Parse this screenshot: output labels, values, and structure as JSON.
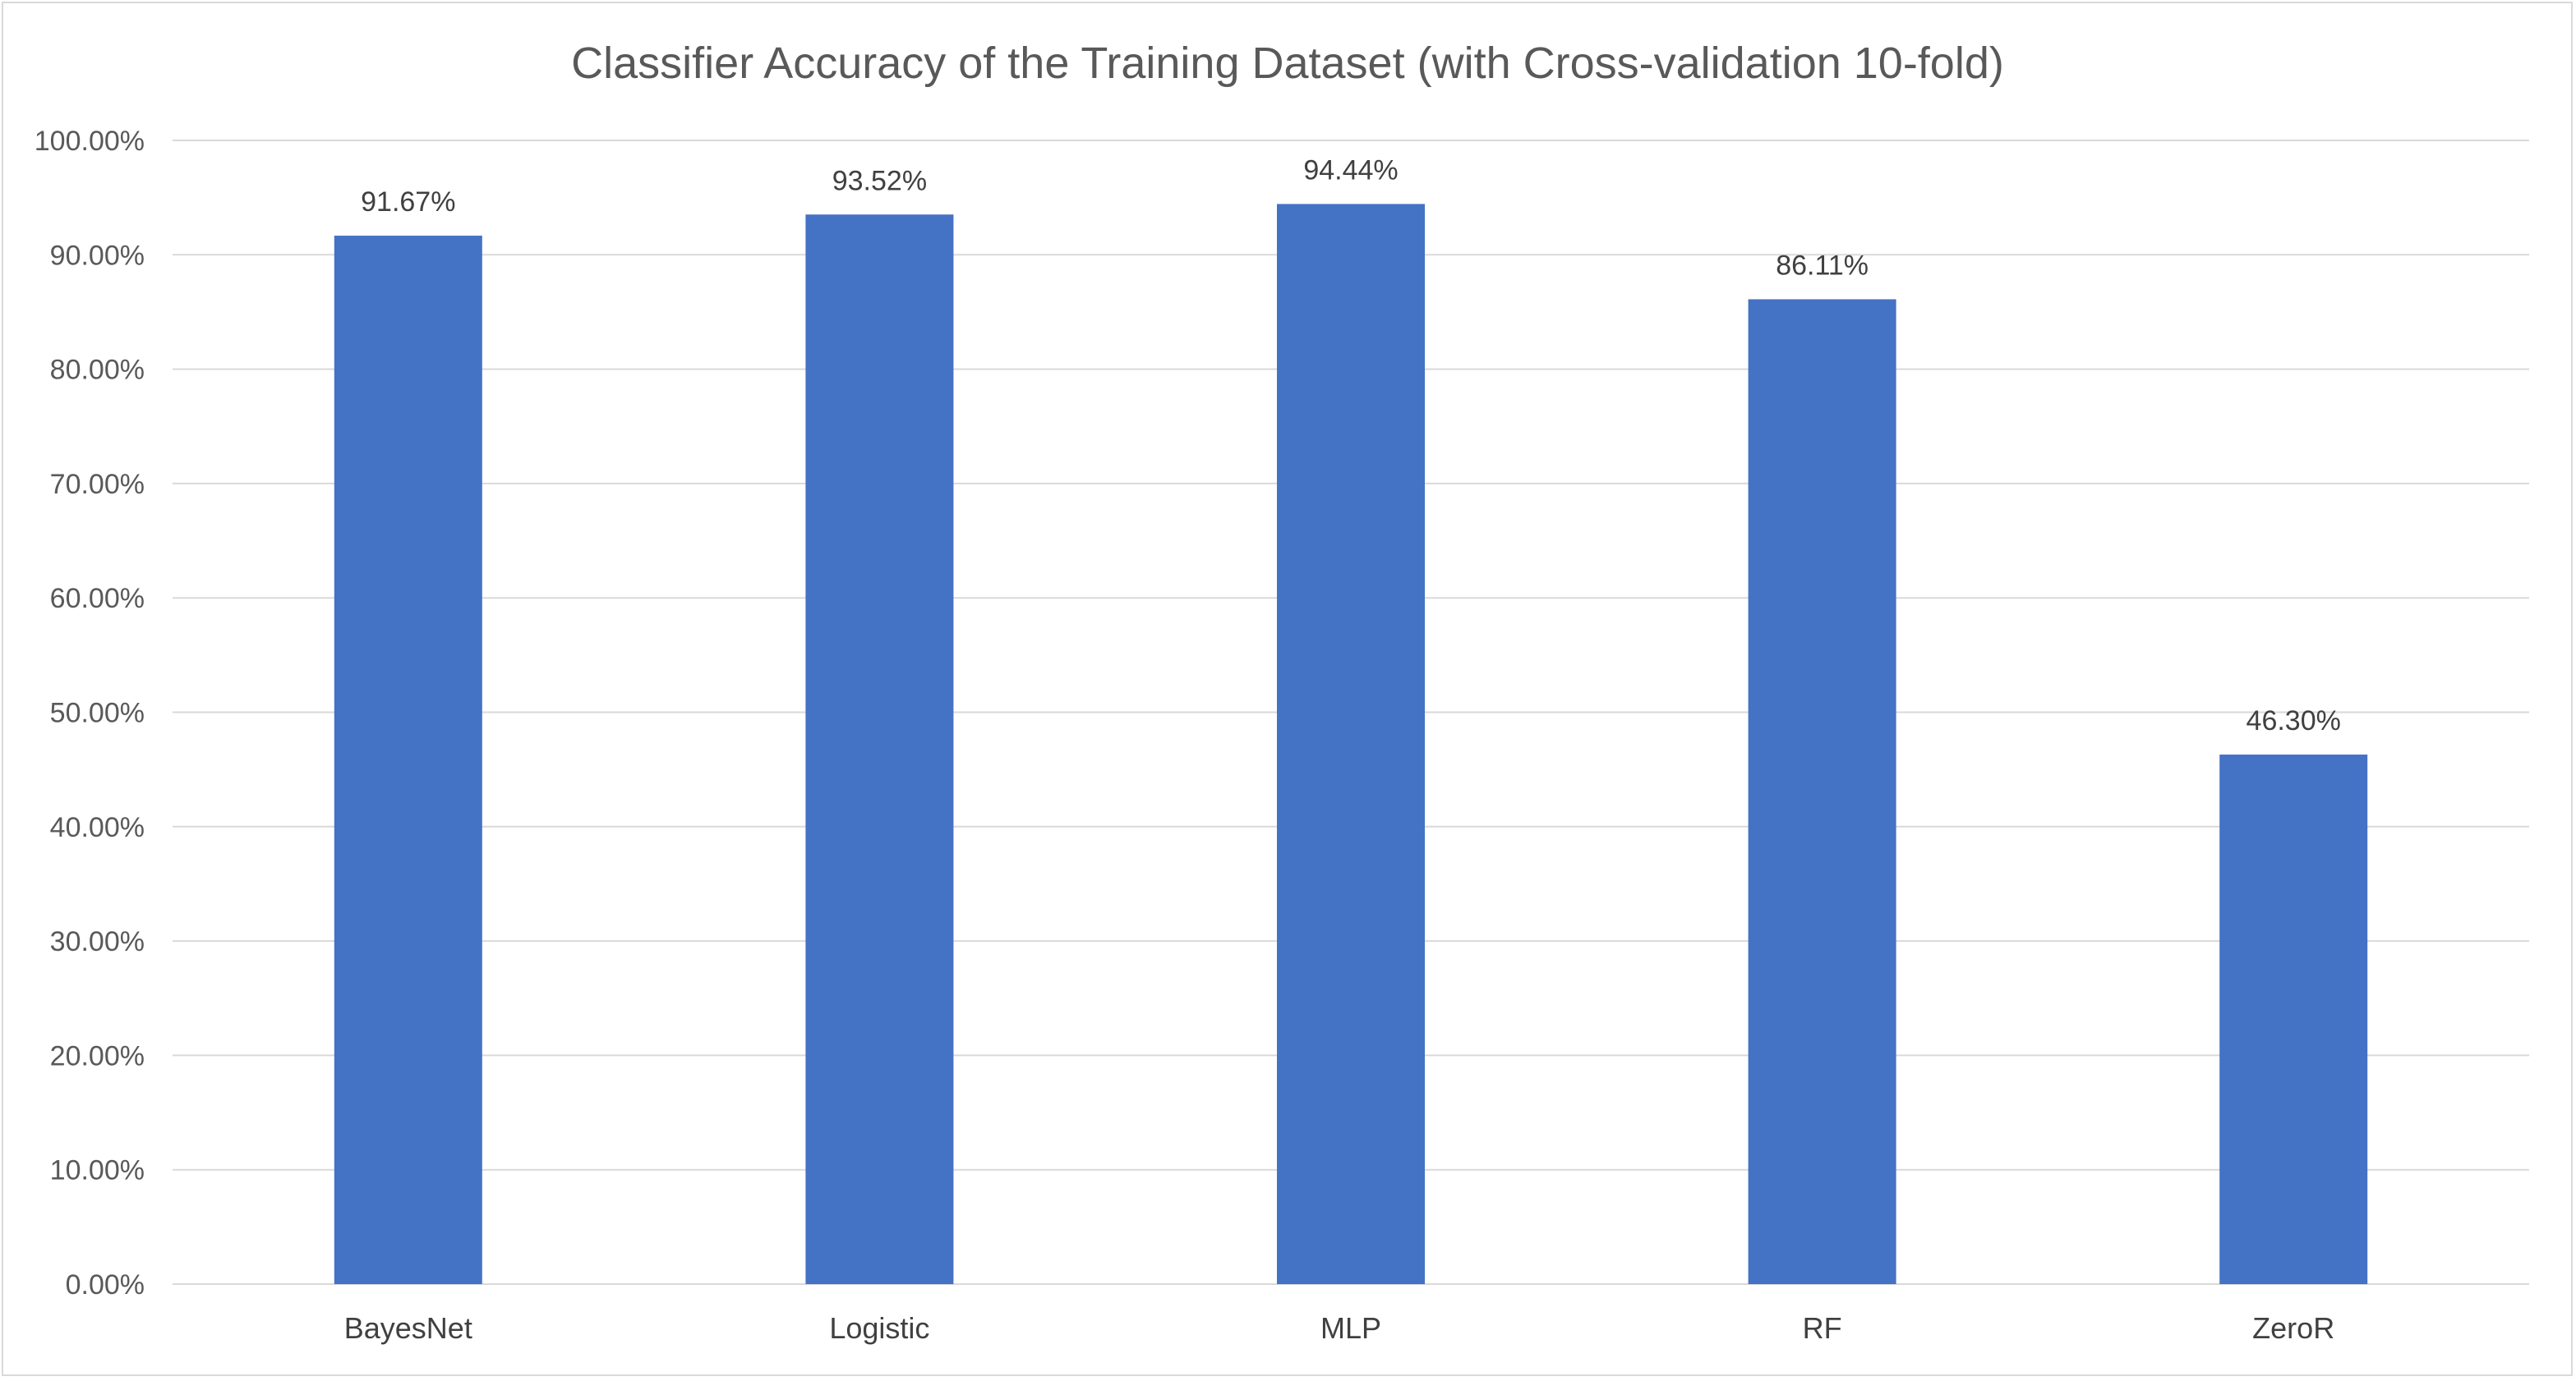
{
  "chart_data": {
    "type": "bar",
    "title": "Classifier Accuracy of the Training Dataset (with Cross-validation 10-fold)",
    "xlabel": "",
    "ylabel": "",
    "categories": [
      "BayesNet",
      "Logistic",
      "MLP",
      "RF",
      "ZeroR"
    ],
    "values": [
      91.67,
      93.52,
      94.44,
      86.11,
      46.3
    ],
    "data_labels": [
      "91.67%",
      "93.52%",
      "94.44%",
      "86.11%",
      "46.30%"
    ],
    "ylim": [
      0,
      100
    ],
    "y_ticks": [
      "0.00%",
      "10.00%",
      "20.00%",
      "30.00%",
      "40.00%",
      "50.00%",
      "60.00%",
      "70.00%",
      "80.00%",
      "90.00%",
      "100.00%"
    ],
    "grid": true,
    "legend": "none",
    "bar_color": "#4472C4",
    "grid_color": "#d9d9d9"
  }
}
